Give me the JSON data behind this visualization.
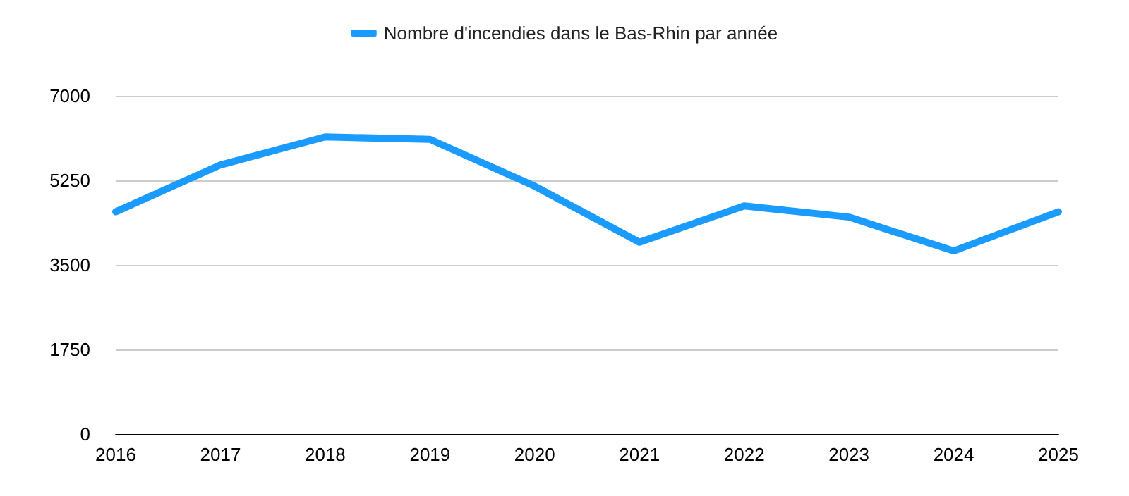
{
  "chart_data": {
    "type": "line",
    "categories": [
      "2016",
      "2017",
      "2018",
      "2019",
      "2020",
      "2021",
      "2022",
      "2023",
      "2024",
      "2025"
    ],
    "series": [
      {
        "name": "Nombre d'incendies dans le Bas-Rhin par année",
        "color": "#1a9bff",
        "values": [
          4600,
          5570,
          6150,
          6100,
          5130,
          3970,
          4720,
          4490,
          3790,
          4600
        ]
      }
    ],
    "ylim": [
      0,
      7000
    ],
    "yticks": [
      0,
      1750,
      3500,
      5250,
      7000
    ],
    "grid": "y",
    "legend": "top",
    "marker": "none",
    "line_style": "solid"
  }
}
